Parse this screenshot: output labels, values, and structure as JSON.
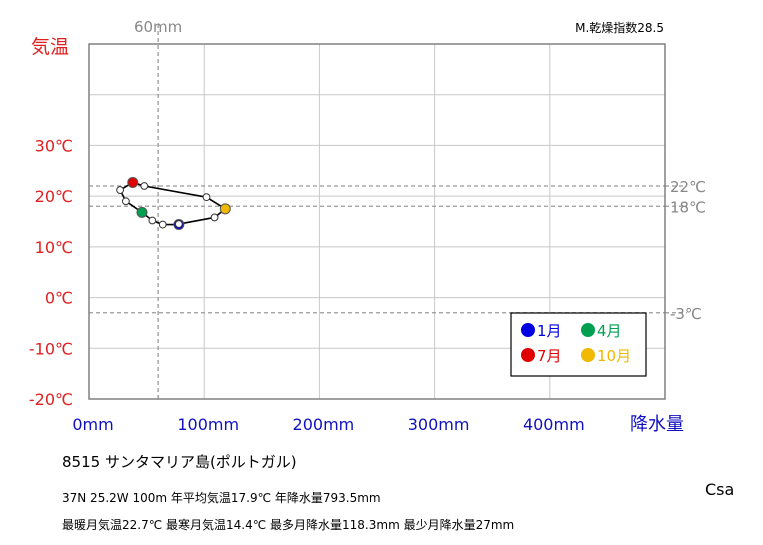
{
  "chart_data": {
    "type": "line",
    "title": "8515 サンタマリア島(ポルトガル)",
    "climate_class": "Csa",
    "dryness_index": "M.乾燥指数28.5",
    "info_line1": "37N 25.2W 100m 年平均気温17.9℃ 年降水量793.5mm",
    "info_line2": "最暖月気温22.7℃ 最寒月気温14.4℃ 最多月降水量118.3mm 最少月降水量27mm",
    "xlabel": "降水量",
    "ylabel": "気温",
    "xlim": [
      0,
      500
    ],
    "ylim": [
      -20,
      50
    ],
    "x_ticks": [
      0,
      100,
      200,
      300,
      400
    ],
    "x_tick_labels": [
      "0mm",
      "100mm",
      "200mm",
      "300mm",
      "400mm"
    ],
    "y_ticks": [
      -20,
      -10,
      0,
      10,
      20,
      30
    ],
    "y_tick_labels": [
      "-20℃",
      "-10℃",
      "0℃",
      "10℃",
      "20℃",
      "30℃"
    ],
    "reference_lines": [
      {
        "axis": "x",
        "value": 60,
        "label": "60mm"
      },
      {
        "axis": "y",
        "value": 22,
        "label": "22℃"
      },
      {
        "axis": "y",
        "value": 18,
        "label": "18℃"
      },
      {
        "axis": "y",
        "value": -3,
        "label": "-3℃"
      }
    ],
    "months": [
      {
        "month": 1,
        "precip": 78,
        "temp": 14.4
      },
      {
        "month": 2,
        "precip": 64,
        "temp": 14.4
      },
      {
        "month": 3,
        "precip": 55,
        "temp": 15.2
      },
      {
        "month": 4,
        "precip": 46,
        "temp": 16.8
      },
      {
        "month": 5,
        "precip": 32,
        "temp": 19.0
      },
      {
        "month": 6,
        "precip": 27,
        "temp": 21.2
      },
      {
        "month": 7,
        "precip": 38,
        "temp": 22.7
      },
      {
        "month": 8,
        "precip": 48,
        "temp": 22.0
      },
      {
        "month": 9,
        "precip": 102,
        "temp": 19.8
      },
      {
        "month": 10,
        "precip": 118.3,
        "temp": 17.5
      },
      {
        "month": 11,
        "precip": 109,
        "temp": 15.8
      },
      {
        "month": 12,
        "precip": 78,
        "temp": 14.5
      }
    ],
    "legend": [
      {
        "label": "1月",
        "month": 1,
        "color": "#0000e0"
      },
      {
        "label": "4月",
        "month": 4,
        "color": "#00a050"
      },
      {
        "label": "7月",
        "month": 7,
        "color": "#e00000"
      },
      {
        "label": "10月",
        "month": 10,
        "color": "#f0b800"
      }
    ],
    "segment_color_dec_jan": "#0a2fd8",
    "line_color": "#000000"
  }
}
